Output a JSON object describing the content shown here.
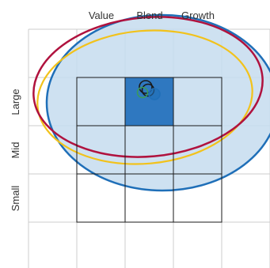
{
  "chart_data": {
    "type": "scatter",
    "title": "",
    "columns": [
      "Value",
      "Blend",
      "Growth"
    ],
    "rows": [
      "Large",
      "Mid",
      "Small"
    ],
    "highlighted_cell": {
      "row": "Large",
      "column": "Blend"
    },
    "colors": {
      "grid": "#cccccc",
      "box": "#1a1a1a",
      "highlight": "#2f78c0",
      "ellipse_fill": "#c6dcef",
      "blue": "#1f6fb8",
      "gold": "#f2c21b",
      "crimson": "#b0123e",
      "green": "#3a9a5b",
      "black": "#1a1a1a"
    },
    "ellipses": [
      {
        "color": "blue",
        "filled": true
      },
      {
        "color": "gold",
        "filled": false
      },
      {
        "color": "crimson",
        "filled": false
      }
    ],
    "points": [
      {
        "color": "black"
      },
      {
        "color": "black"
      },
      {
        "color": "green"
      },
      {
        "color": "blue"
      }
    ]
  }
}
